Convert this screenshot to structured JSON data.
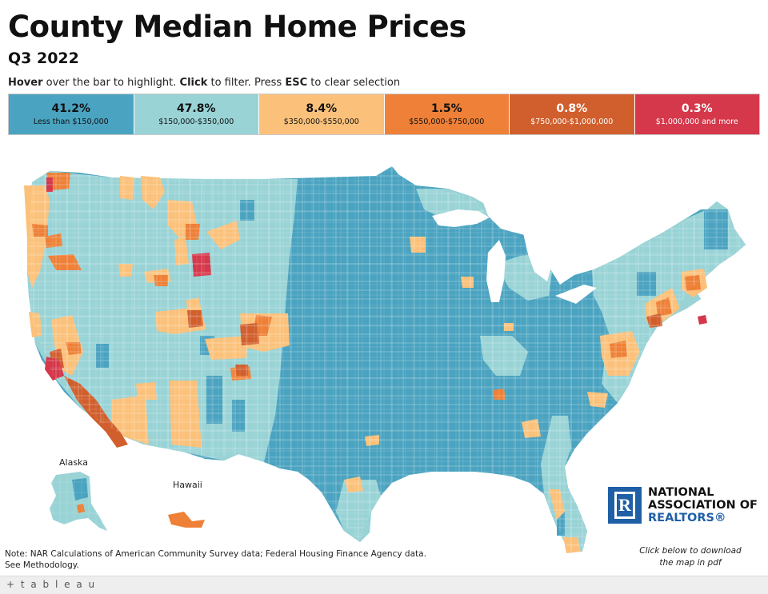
{
  "title": "County Median Home Prices",
  "subtitle": "Q3 2022",
  "instructions": {
    "hover_bold": "Hover",
    "hover_rest": " over the bar to highlight. ",
    "click_bold": "Click",
    "click_rest": " to filter. Press ",
    "esc_bold": "ESC",
    "esc_rest": " to clear selection"
  },
  "legend": [
    {
      "pct": "41.2%",
      "range": "Less than $150,000",
      "color": "#4aa3c0",
      "text_color": "#111111"
    },
    {
      "pct": "47.8%",
      "range": "$150,000-$350,000",
      "color": "#99d3d6",
      "text_color": "#111111"
    },
    {
      "pct": "8.4%",
      "range": "$350,000-$550,000",
      "color": "#fbc17b",
      "text_color": "#111111"
    },
    {
      "pct": "1.5%",
      "range": "$550,000-$750,000",
      "color": "#ee8037",
      "text_color": "#111111"
    },
    {
      "pct": "0.8%",
      "range": "$750,000-$1,000,000",
      "color": "#d15f2d",
      "text_color": "#ffffff"
    },
    {
      "pct": "0.3%",
      "range": "$1,000,000 and more",
      "color": "#d5384b",
      "text_color": "#ffffff"
    }
  ],
  "map": {
    "alaska_label": "Alaska",
    "hawaii_label": "Hawaii"
  },
  "logo": {
    "line1": "NATIONAL",
    "line2": "ASSOCIATION OF",
    "line3": "REALTORS",
    "mark": "R",
    "reg": "®"
  },
  "note": {
    "line1": "Note: NAR Calculations of American Community Survey data; Federal Housing Finance Agency data.",
    "line2": "See Methodology."
  },
  "download": {
    "line1": "Click below to download",
    "line2": "the map in pdf"
  },
  "footer": {
    "brand": "+ t a b l e a u"
  }
}
